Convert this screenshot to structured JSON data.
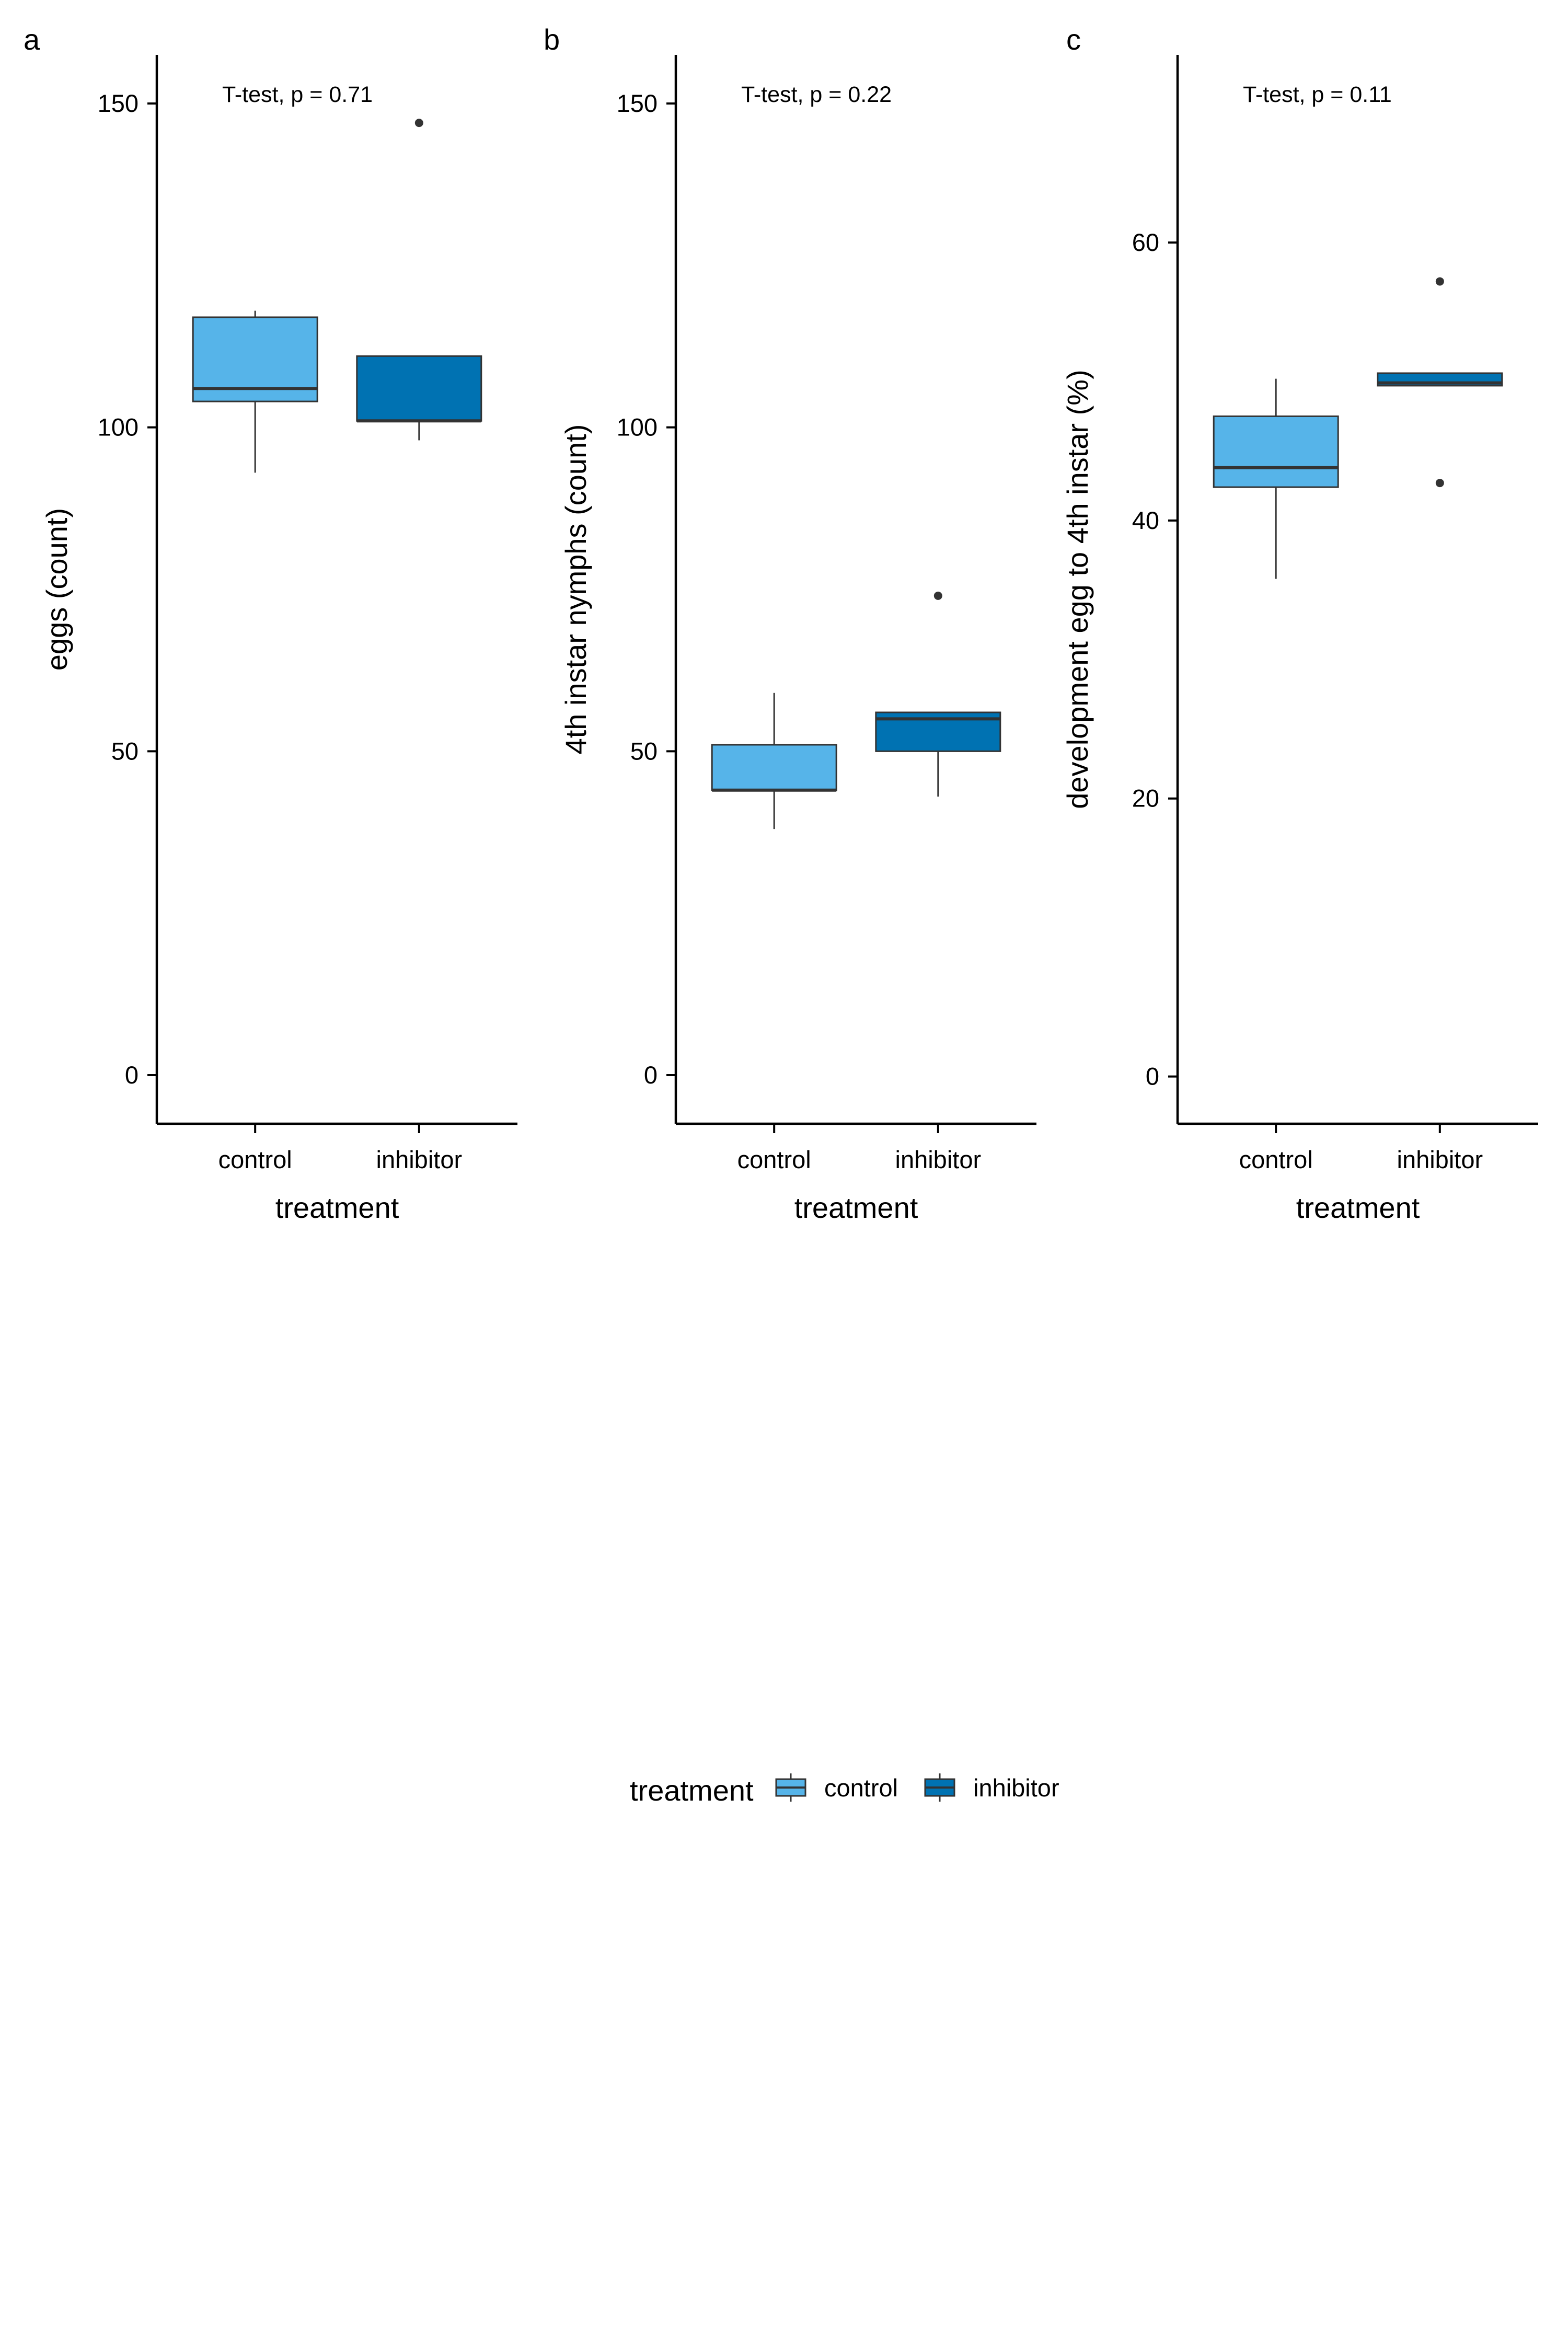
{
  "chart_data": [
    {
      "type": "boxplot",
      "panel_label": "a",
      "annotation": "T-test, p = 0.71",
      "xlabel": "treatment",
      "ylabel": "eggs (count)",
      "categories": [
        "control",
        "inhibitor"
      ],
      "yticks": [
        0,
        50,
        100,
        150
      ],
      "ytick_labels": [
        "0",
        "50",
        "100",
        "150"
      ],
      "ylim": [
        -7.5,
        157.5
      ],
      "boxes": [
        {
          "group": "control",
          "lower_whisker": 93,
          "q1": 104,
          "median": 106,
          "q3": 117,
          "upper_whisker": 118,
          "outliers": []
        },
        {
          "group": "inhibitor",
          "lower_whisker": 98,
          "q1": 101,
          "median": 101,
          "q3": 111,
          "upper_whisker": 111,
          "outliers": [
            147
          ]
        }
      ]
    },
    {
      "type": "boxplot",
      "panel_label": "b",
      "annotation": "T-test, p = 0.22",
      "xlabel": "treatment",
      "ylabel": "4th instar nymphs (count)",
      "categories": [
        "control",
        "inhibitor"
      ],
      "yticks": [
        0,
        50,
        100,
        150
      ],
      "ytick_labels": [
        "0",
        "50",
        "100",
        "150"
      ],
      "ylim": [
        -7.5,
        157.5
      ],
      "boxes": [
        {
          "group": "control",
          "lower_whisker": 38,
          "q1": 44,
          "median": 44,
          "q3": 51,
          "upper_whisker": 59,
          "outliers": []
        },
        {
          "group": "inhibitor",
          "lower_whisker": 43,
          "q1": 50,
          "median": 55,
          "q3": 56,
          "upper_whisker": 56,
          "outliers": [
            74
          ]
        }
      ]
    },
    {
      "type": "boxplot",
      "panel_label": "c",
      "annotation": "T-test, p = 0.11",
      "xlabel": "treatment",
      "ylabel": "development egg to 4th instar (%)",
      "categories": [
        "control",
        "inhibitor"
      ],
      "yticks": [
        0,
        20,
        40,
        60
      ],
      "ytick_labels": [
        "0",
        "20",
        "40",
        "60"
      ],
      "ylim": [
        -3.4,
        73.5
      ],
      "boxes": [
        {
          "group": "control",
          "lower_whisker": 35.8,
          "q1": 42.4,
          "median": 43.8,
          "q3": 47.5,
          "upper_whisker": 50.2,
          "outliers": []
        },
        {
          "group": "inhibitor",
          "lower_whisker": 49.7,
          "q1": 49.7,
          "median": 49.9,
          "q3": 50.6,
          "upper_whisker": 50.6,
          "outliers": [
            42.7,
            57.2
          ]
        }
      ]
    }
  ],
  "legend": {
    "title": "treatment",
    "position": "bottom",
    "items": [
      {
        "label": "control",
        "color": "#56B4E9"
      },
      {
        "label": "inhibitor",
        "color": "#0072B2"
      }
    ]
  },
  "colors": {
    "control": "#56B4E9",
    "inhibitor": "#0072B2",
    "outline": "#333333",
    "axis": "#000000"
  }
}
